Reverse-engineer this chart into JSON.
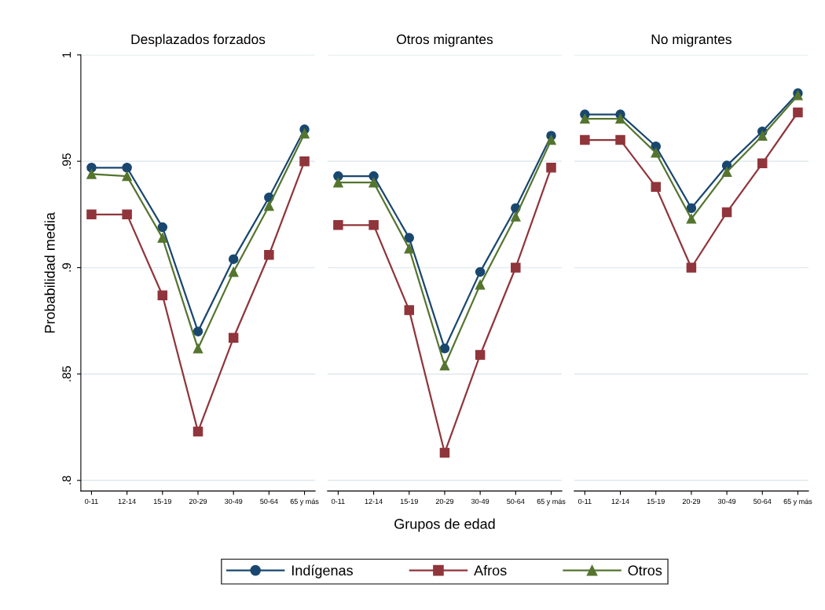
{
  "chart_data": [
    {
      "type": "line",
      "title": "Desplazados forzados",
      "ylabel": "Probabilidad media",
      "categories": [
        "0-11",
        "12-14",
        "15-19",
        "20-29",
        "30-49",
        "50-64",
        "65 y más"
      ],
      "ylim": [
        0.795,
        1
      ],
      "yticks": [
        {
          "value": 1,
          "label": "1"
        },
        {
          "value": 0.95,
          "label": ".95"
        },
        {
          "value": 0.9,
          "label": ".9"
        },
        {
          "value": 0.85,
          "label": ".85"
        },
        {
          "value": 0.8,
          "label": ".8"
        }
      ],
      "grid": "y",
      "legend": false,
      "series": [
        {
          "color": "#1a476f",
          "marker": "circle",
          "values": [
            0.947,
            0.947,
            0.919,
            0.87,
            0.904,
            0.933,
            0.965
          ]
        },
        {
          "color": "#90353b",
          "marker": "square",
          "values": [
            0.925,
            0.925,
            0.887,
            0.823,
            0.867,
            0.906,
            0.95
          ]
        },
        {
          "color": "#55752f",
          "marker": "triangle",
          "values": [
            0.944,
            0.943,
            0.914,
            0.862,
            0.898,
            0.929,
            0.963
          ]
        }
      ]
    },
    {
      "type": "line",
      "title": "Otros migrantes",
      "xlabel": "Grupos de edad",
      "categories": [
        "0-11",
        "12-14",
        "15-19",
        "20-29",
        "30-49",
        "50-64",
        "65 y más"
      ],
      "ylim": [
        0.795,
        1
      ],
      "yticks": [
        1,
        0.95,
        0.9,
        0.85,
        0.8
      ],
      "grid": "y",
      "tick_labels": "x",
      "legend": "bottom",
      "series": [
        {
          "name": "Indígenas",
          "color": "#1a476f",
          "marker": "circle",
          "values": [
            0.943,
            0.943,
            0.914,
            0.862,
            0.898,
            0.928,
            0.962
          ]
        },
        {
          "name": "Afros",
          "color": "#90353b",
          "marker": "square",
          "values": [
            0.92,
            0.92,
            0.88,
            0.813,
            0.859,
            0.9,
            0.947
          ]
        },
        {
          "name": "Otros",
          "color": "#55752f",
          "marker": "triangle",
          "values": [
            0.94,
            0.94,
            0.909,
            0.854,
            0.892,
            0.924,
            0.96
          ]
        }
      ]
    },
    {
      "type": "line",
      "title": "No migrantes",
      "categories": [
        "0-11",
        "12-14",
        "15-19",
        "20-29",
        "30-49",
        "50-64",
        "65 y más"
      ],
      "ylim": [
        0.795,
        1
      ],
      "yticks": [
        1,
        0.95,
        0.9,
        0.85,
        0.8
      ],
      "grid": "y",
      "tick_labels": "x",
      "legend": false,
      "series": [
        {
          "color": "#1a476f",
          "marker": "circle",
          "values": [
            0.972,
            0.972,
            0.957,
            0.928,
            0.948,
            0.964,
            0.982
          ]
        },
        {
          "color": "#90353b",
          "marker": "square",
          "values": [
            0.96,
            0.96,
            0.938,
            0.9,
            0.926,
            0.949,
            0.973
          ]
        },
        {
          "color": "#55752f",
          "marker": "triangle",
          "values": [
            0.97,
            0.97,
            0.954,
            0.923,
            0.945,
            0.962,
            0.981
          ]
        }
      ]
    }
  ]
}
